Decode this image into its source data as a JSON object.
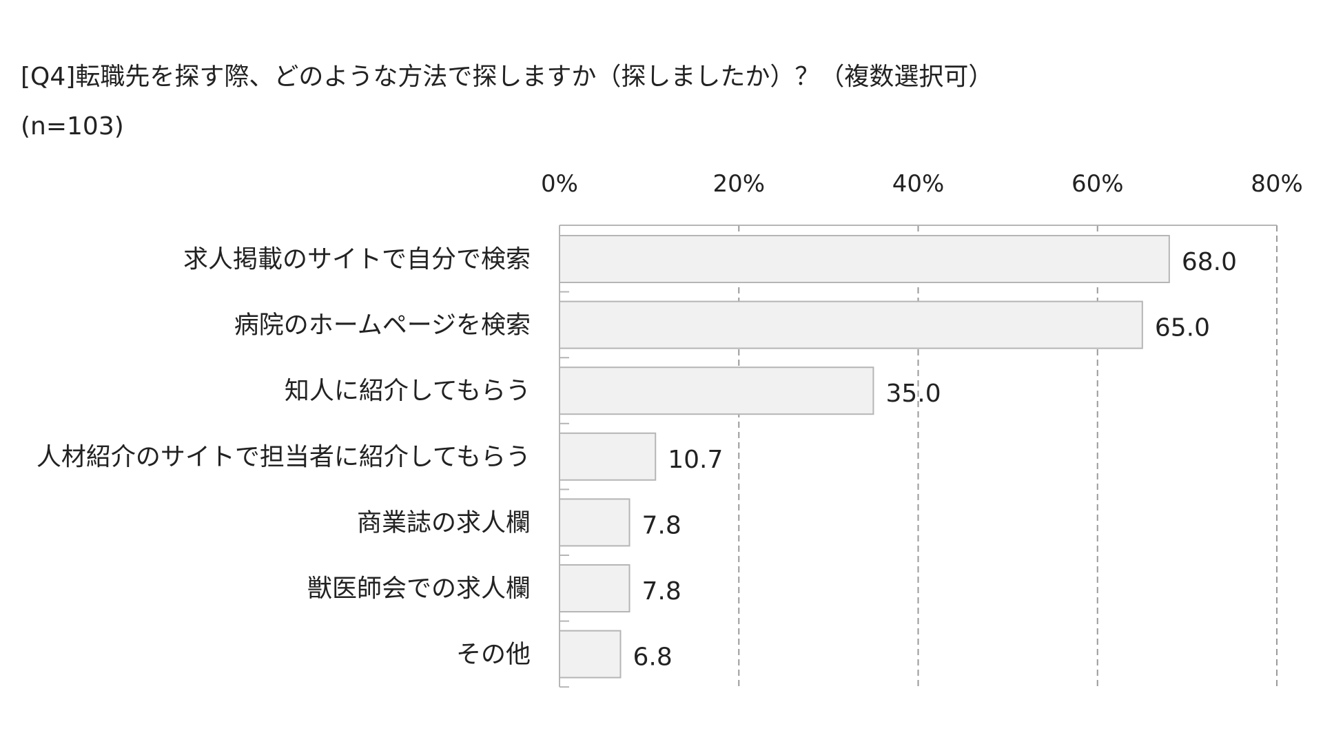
{
  "chart_data": {
    "type": "bar",
    "orientation": "horizontal",
    "title": "[Q4]転職先を探す際、どのような方法で探しますか（探しましたか）？（複数選択可）",
    "subtitle": "(n=103)",
    "categories": [
      "求人掲載のサイトで自分で検索",
      "病院のホームページを検索",
      "知人に紹介してもらう",
      "人材紹介のサイトで担当者に紹介してもらう",
      "商業誌の求人欄",
      "獣医師会での求人欄",
      "その他"
    ],
    "values": [
      68.0,
      65.0,
      35.0,
      10.7,
      7.8,
      7.8,
      6.8
    ],
    "value_labels": [
      "68.0",
      "65.0",
      "35.0",
      "10.7",
      "7.8",
      "7.8",
      "6.8"
    ],
    "xlim": [
      0,
      80
    ],
    "xticks": [
      0,
      20,
      40,
      60,
      80
    ],
    "xtick_labels": [
      "0%",
      "20%",
      "40%",
      "60%",
      "80%"
    ],
    "xaxis_position": "top",
    "grid": "vertical dashed",
    "legend": "none",
    "colors": {
      "bar_fill": "#f1f1f1",
      "bar_stroke": "#b5b5b5",
      "grid": "#9a9a9a",
      "axis": "#b5b5b5",
      "text": "#222222"
    }
  }
}
